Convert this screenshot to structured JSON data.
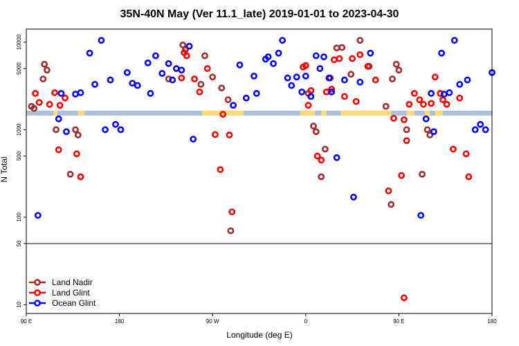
{
  "chart_data": {
    "type": "scatter",
    "title": "35N-40N May (Ver 11.1_late)   2019-01-01 to 2023-04-30",
    "xlabel": "Longitude (deg E)",
    "ylabel": "N Total",
    "xlim": [
      90,
      450
    ],
    "ylim_log10": [
      0.9,
      4.15
    ],
    "reference_line_y": 50,
    "x_ticks": [
      {
        "value": 90,
        "label": "90 E"
      },
      {
        "value": 162,
        "label": "180"
      },
      {
        "value": 234,
        "label": "90 W"
      },
      {
        "value": 306,
        "label": "0"
      },
      {
        "value": 378,
        "label": "90 E"
      },
      {
        "value": 450,
        "label": "180"
      }
    ],
    "y_ticks": [
      {
        "value": 10,
        "label": "10"
      },
      {
        "value": 50,
        "label": "50"
      },
      {
        "value": 100,
        "label": "100"
      },
      {
        "value": 500,
        "label": "500"
      },
      {
        "value": 1000,
        "label": "1000"
      },
      {
        "value": 5000,
        "label": "5000"
      },
      {
        "value": 10000,
        "label": "10000"
      }
    ],
    "legend_position": "bottom-left",
    "series": [
      {
        "name": "Land Nadir",
        "color": "#a52a2a",
        "points": [
          [
            96,
            1750
          ],
          [
            104,
            5600
          ],
          [
            106,
            4800
          ],
          [
            113,
            1000
          ],
          [
            124,
            310
          ],
          [
            128,
            1000
          ],
          [
            130,
            870
          ],
          [
            94,
            1850
          ],
          [
            103,
            3800
          ],
          [
            211,
            9300
          ],
          [
            213,
            8200
          ],
          [
            200,
            3800
          ],
          [
            228,
            7000
          ],
          [
            234,
            4000
          ],
          [
            241,
            3000
          ],
          [
            225,
            3300
          ],
          [
            246,
            2200
          ],
          [
            248,
            70
          ],
          [
            306,
            5400
          ],
          [
            308,
            2600
          ],
          [
            312,
            1100
          ],
          [
            314,
            950
          ],
          [
            318,
            290
          ],
          [
            321,
            600
          ],
          [
            325,
            3900
          ],
          [
            330,
            8600
          ],
          [
            334,
            8700
          ],
          [
            341,
            4300
          ],
          [
            348,
            10500
          ],
          [
            355,
            5300
          ],
          [
            372,
            140
          ],
          [
            376,
            5600
          ],
          [
            378,
            4800
          ],
          [
            384,
            1000
          ],
          [
            396,
            310
          ],
          [
            400,
            1000
          ],
          [
            402,
            870
          ],
          [
            368,
            1850
          ],
          [
            373,
            3800
          ]
        ]
      },
      {
        "name": "Land Glint",
        "color": "#ff0000",
        "points": [
          [
            97,
            2600
          ],
          [
            100,
            2050
          ],
          [
            108,
            1950
          ],
          [
            112,
            2650
          ],
          [
            115,
            590
          ],
          [
            120,
            2300
          ],
          [
            129,
            530
          ],
          [
            132,
            290
          ],
          [
            116,
            1900
          ],
          [
            210,
            3900
          ],
          [
            212,
            7600
          ],
          [
            214,
            7000
          ],
          [
            220,
            3800
          ],
          [
            224,
            2700
          ],
          [
            230,
            5000
          ],
          [
            236,
            880
          ],
          [
            240,
            350
          ],
          [
            242,
            1500
          ],
          [
            247,
            870
          ],
          [
            249,
            115
          ],
          [
            304,
            5200
          ],
          [
            306,
            5400
          ],
          [
            308,
            1900
          ],
          [
            310,
            2800
          ],
          [
            315,
            500
          ],
          [
            318,
            450
          ],
          [
            322,
            2700
          ],
          [
            326,
            2900
          ],
          [
            328,
            6300
          ],
          [
            332,
            6500
          ],
          [
            336,
            2400
          ],
          [
            342,
            6500
          ],
          [
            345,
            2100
          ],
          [
            348,
            7200
          ],
          [
            354,
            5300
          ],
          [
            360,
            3700
          ],
          [
            370,
            200
          ],
          [
            374,
            1350
          ],
          [
            380,
            300
          ],
          [
            382,
            1300
          ],
          [
            384,
            750
          ],
          [
            386,
            1950
          ],
          [
            390,
            2600
          ],
          [
            394,
            2200
          ],
          [
            397,
            1950
          ],
          [
            403,
            2000
          ],
          [
            406,
            4000
          ],
          [
            410,
            2600
          ],
          [
            412,
            2200
          ],
          [
            415,
            1950
          ],
          [
            420,
            600
          ],
          [
            425,
            2300
          ],
          [
            430,
            530
          ],
          [
            432,
            290
          ],
          [
            382,
            12
          ]
        ]
      },
      {
        "name": "Ocean Glint",
        "color": "#0000ff",
        "points": [
          [
            99,
            105
          ],
          [
            115,
            1330
          ],
          [
            117,
            2600
          ],
          [
            121,
            950
          ],
          [
            128,
            2550
          ],
          [
            132,
            2650
          ],
          [
            139,
            7500
          ],
          [
            148,
            10500
          ],
          [
            143,
            3300
          ],
          [
            155,
            3700
          ],
          [
            151,
            1000
          ],
          [
            159,
            1150
          ],
          [
            163,
            1000
          ],
          [
            168,
            4500
          ],
          [
            172,
            3400
          ],
          [
            176,
            3200
          ],
          [
            184,
            5800
          ],
          [
            186,
            2600
          ],
          [
            190,
            7000
          ],
          [
            195,
            4400
          ],
          [
            200,
            5700
          ],
          [
            203,
            3700
          ],
          [
            206,
            5000
          ],
          [
            210,
            4800
          ],
          [
            216,
            9000
          ],
          [
            219,
            780
          ],
          [
            250,
            1900
          ],
          [
            255,
            5500
          ],
          [
            260,
            2300
          ],
          [
            266,
            4100
          ],
          [
            268,
            2600
          ],
          [
            275,
            6400
          ],
          [
            277,
            6800
          ],
          [
            281,
            5700
          ],
          [
            285,
            7500
          ],
          [
            288,
            10500
          ],
          [
            292,
            3900
          ],
          [
            295,
            3200
          ],
          [
            299,
            4000
          ],
          [
            303,
            2700
          ],
          [
            306,
            4100
          ],
          [
            310,
            2400
          ],
          [
            314,
            7000
          ],
          [
            317,
            5000
          ],
          [
            320,
            6800
          ],
          [
            324,
            3900
          ],
          [
            326,
            2700
          ],
          [
            330,
            480
          ],
          [
            336,
            3700
          ],
          [
            343,
            170
          ],
          [
            348,
            3500
          ],
          [
            356,
            7500
          ],
          [
            395,
            105
          ],
          [
            399,
            1330
          ],
          [
            403,
            2600
          ],
          [
            405,
            950
          ],
          [
            411,
            7500
          ],
          [
            413,
            2550
          ],
          [
            417,
            2650
          ],
          [
            421,
            10500
          ],
          [
            425,
            3300
          ],
          [
            431,
            3700
          ],
          [
            437,
            1000
          ],
          [
            441,
            1150
          ],
          [
            445,
            1000
          ],
          [
            450,
            4500
          ]
        ]
      }
    ],
    "coverage_band": {
      "y_bottom": 1450,
      "y_top": 1650,
      "ocean_color": "#aec0dc",
      "land_color": "#ffd97a",
      "land_segments_lon": [
        [
          111,
          114
        ],
        [
          130,
          135
        ],
        [
          226,
          258
        ],
        [
          302,
          313
        ],
        [
          318,
          322
        ],
        [
          333,
          372
        ],
        [
          384,
          390
        ],
        [
          398,
          402
        ],
        [
          406,
          412
        ]
      ]
    }
  }
}
